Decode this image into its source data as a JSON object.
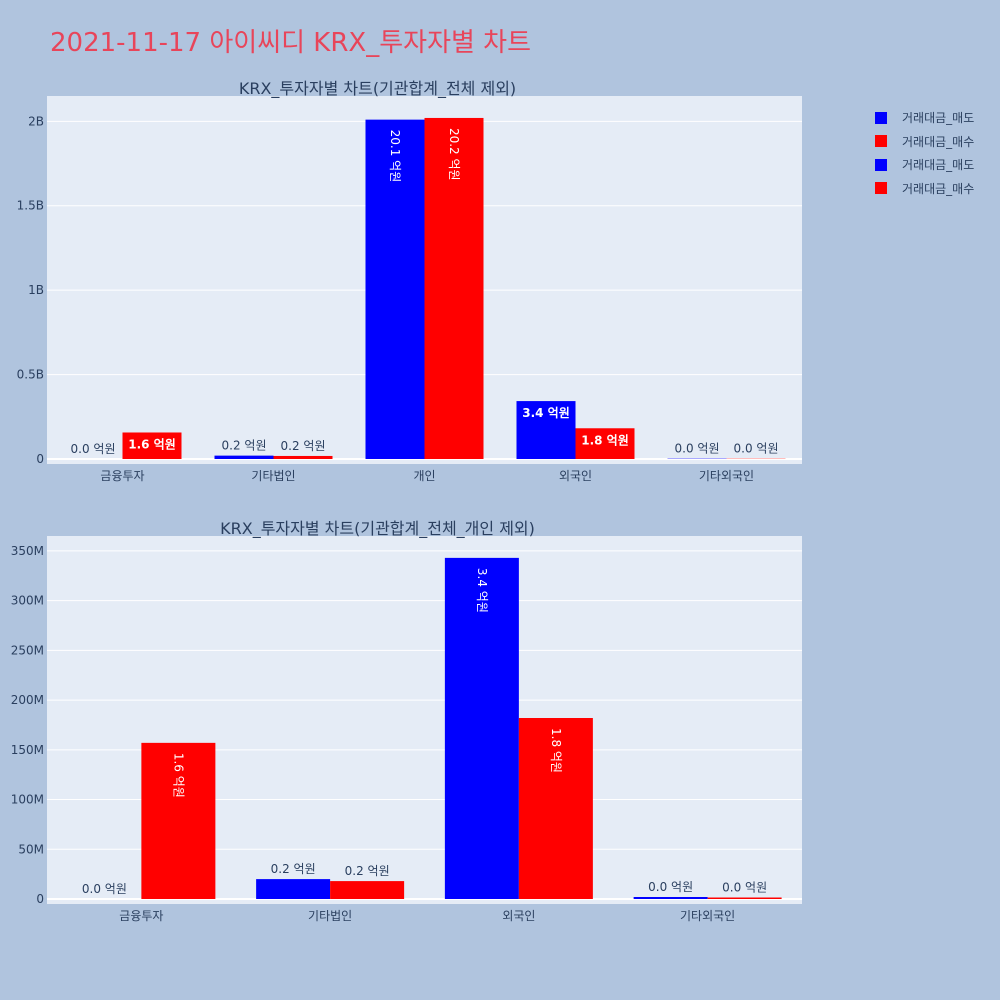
{
  "page": {
    "title": "2021-11-17 아이씨디 KRX_투자자별 차트",
    "title_color": "#e8455a",
    "background": "#b0c4de",
    "plot_background": "#e5ecf6"
  },
  "legend": {
    "placement": "top-right",
    "items": [
      {
        "label": "거래대금_매도",
        "color": "#0000ff"
      },
      {
        "label": "거래대금_매수",
        "color": "#ff0000"
      },
      {
        "label": "거래대금_매도",
        "color": "#0000ff"
      },
      {
        "label": "거래대금_매수",
        "color": "#ff0000"
      }
    ]
  },
  "chart_data": [
    {
      "type": "bar",
      "title": "KRX_투자자별 차트(기관합계_전체 제외)",
      "categories": [
        "금융투자",
        "기타법인",
        "개인",
        "외국인",
        "기타외국인"
      ],
      "series": [
        {
          "name": "거래대금_매도",
          "color": "#0000ff",
          "values": [
            0,
            20000000,
            2010000000,
            343000000,
            2000000
          ],
          "labels": [
            "0.0 억원",
            "0.2 억원",
            "20.1 억원",
            "3.4 억원",
            "0.0 억원"
          ]
        },
        {
          "name": "거래대금_매수",
          "color": "#ff0000",
          "values": [
            157000000,
            18000000,
            2020000000,
            182000000,
            1500000
          ],
          "labels": [
            "1.6 억원",
            "0.2 억원",
            "20.2 억원",
            "1.8 억원",
            "0.0 억원"
          ]
        }
      ],
      "ylim": [
        0,
        2150000000
      ],
      "yticks": [
        0,
        500000000,
        1000000000,
        1500000000,
        2000000000
      ],
      "ytick_labels": [
        "0",
        "0.5B",
        "1B",
        "1.5B",
        "2B"
      ],
      "grid": true
    },
    {
      "type": "bar",
      "title": "KRX_투자자별 차트(기관합계_전체_개인 제외)",
      "categories": [
        "금융투자",
        "기타법인",
        "외국인",
        "기타외국인"
      ],
      "series": [
        {
          "name": "거래대금_매도",
          "color": "#0000ff",
          "values": [
            0,
            20000000,
            343000000,
            2000000
          ],
          "labels": [
            "0.0 억원",
            "0.2 억원",
            "3.4 억원",
            "0.0 억원"
          ]
        },
        {
          "name": "거래대금_매수",
          "color": "#ff0000",
          "values": [
            157000000,
            18000000,
            182000000,
            1500000
          ],
          "labels": [
            "1.6 억원",
            "0.2 억원",
            "1.8 억원",
            "0.0 억원"
          ]
        }
      ],
      "ylim": [
        0,
        365000000
      ],
      "yticks": [
        0,
        50000000,
        100000000,
        150000000,
        200000000,
        250000000,
        300000000,
        350000000
      ],
      "ytick_labels": [
        "0",
        "50M",
        "100M",
        "150M",
        "200M",
        "250M",
        "300M",
        "350M"
      ],
      "grid": true
    }
  ]
}
